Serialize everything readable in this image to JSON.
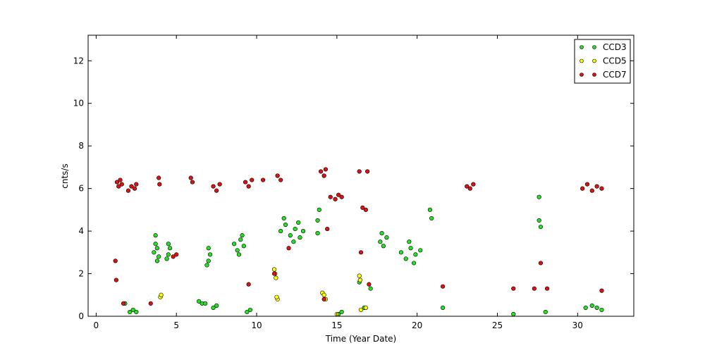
{
  "chart_data": {
    "type": "scatter",
    "x_label": "Time (Year Date)",
    "y_label": "cnts/s",
    "xlim": [
      -0.5,
      33.5
    ],
    "ylim": [
      0,
      13.2
    ],
    "xticks": [
      0,
      5,
      10,
      15,
      20,
      25,
      30
    ],
    "yticks": [
      0,
      2,
      4,
      6,
      8,
      10,
      12
    ],
    "legend": "upper right",
    "series": [
      {
        "name": "CCD3",
        "color": "#22e022",
        "x": [
          3.6,
          3.7,
          3.8,
          3.9,
          3.7,
          3.8,
          4.5,
          4.6,
          4.4,
          4.5,
          7.0,
          7.1,
          6.9,
          7.0,
          8.6,
          8.8,
          9.0,
          9.2,
          8.9,
          9.1,
          11.5,
          11.8,
          12.1,
          12.4,
          12.7,
          12.9,
          11.7,
          12.3,
          12.6,
          13.8,
          13.9,
          13.8,
          17.7,
          17.9,
          18.1,
          17.8,
          19.0,
          19.3,
          19.6,
          19.9,
          20.2,
          19.5,
          19.8,
          20.8,
          20.9,
          27.6,
          27.7,
          27.6,
          2.1,
          2.3,
          2.5,
          6.4,
          6.6,
          6.8,
          7.3,
          7.5,
          9.4,
          9.6,
          15.1,
          15.3,
          16.7,
          17.1,
          16.4,
          21.6,
          26.0,
          28.0,
          30.5,
          30.9,
          31.2,
          31.5,
          1.8
        ],
        "values": [
          3.0,
          3.4,
          3.2,
          2.8,
          3.8,
          2.6,
          2.9,
          3.2,
          2.7,
          3.4,
          2.6,
          2.9,
          2.4,
          3.2,
          3.4,
          3.1,
          3.6,
          3.3,
          2.9,
          3.8,
          4.0,
          4.3,
          3.8,
          4.1,
          3.7,
          4.0,
          4.6,
          3.5,
          4.4,
          4.5,
          5.0,
          3.9,
          3.5,
          3.3,
          3.7,
          3.9,
          3.0,
          2.7,
          3.2,
          2.9,
          3.1,
          3.5,
          2.5,
          5.0,
          4.6,
          4.5,
          4.2,
          5.6,
          0.2,
          0.3,
          0.2,
          0.7,
          0.6,
          0.6,
          0.4,
          0.5,
          0.2,
          0.3,
          0.1,
          0.2,
          0.4,
          1.3,
          1.6,
          0.4,
          0.1,
          0.2,
          0.4,
          0.5,
          0.4,
          0.3,
          0.6
        ]
      },
      {
        "name": "CCD5",
        "color": "#ffff00",
        "x": [
          11.1,
          11.2,
          11.15,
          4.0,
          4.05,
          14.1,
          14.3,
          14.2,
          16.4,
          16.45,
          16.8,
          16.5,
          11.3,
          11.25,
          15.0
        ],
        "values": [
          2.2,
          1.8,
          2.0,
          0.9,
          1.0,
          1.1,
          0.8,
          1.0,
          1.9,
          1.7,
          0.4,
          0.3,
          0.8,
          0.9,
          0.1
        ]
      },
      {
        "name": "CCD7",
        "color": "#dd1111",
        "x": [
          1.3,
          1.4,
          1.5,
          1.6,
          2.0,
          2.2,
          2.4,
          2.5,
          3.9,
          3.95,
          5.9,
          6.0,
          7.3,
          7.5,
          7.7,
          9.3,
          9.5,
          9.7,
          10.4,
          11.3,
          11.5,
          14.0,
          14.2,
          14.3,
          14.6,
          14.9,
          15.1,
          15.3,
          16.4,
          16.6,
          16.8,
          16.9,
          23.1,
          23.3,
          23.5,
          30.3,
          30.6,
          30.9,
          31.2,
          31.5,
          1.7,
          3.4,
          4.8,
          5.0,
          11.1,
          12.0,
          14.2,
          16.5,
          17.0,
          21.6,
          26.0,
          27.3,
          27.7,
          28.1,
          31.5,
          1.2,
          1.25,
          9.5,
          14.4
        ],
        "values": [
          6.3,
          6.1,
          6.4,
          6.2,
          5.9,
          6.1,
          6.0,
          6.2,
          6.5,
          6.2,
          6.5,
          6.3,
          6.1,
          5.9,
          6.2,
          6.3,
          6.1,
          6.4,
          6.4,
          6.6,
          6.4,
          6.8,
          6.6,
          6.9,
          5.6,
          5.5,
          5.7,
          5.6,
          6.8,
          5.1,
          5.0,
          6.8,
          6.1,
          6.0,
          6.2,
          6.0,
          6.2,
          5.9,
          6.1,
          6.0,
          0.6,
          0.6,
          2.8,
          2.9,
          2.0,
          3.2,
          0.8,
          3.0,
          1.5,
          1.4,
          1.3,
          1.3,
          2.5,
          1.3,
          1.2,
          2.6,
          1.7,
          1.5,
          4.1
        ]
      }
    ]
  }
}
